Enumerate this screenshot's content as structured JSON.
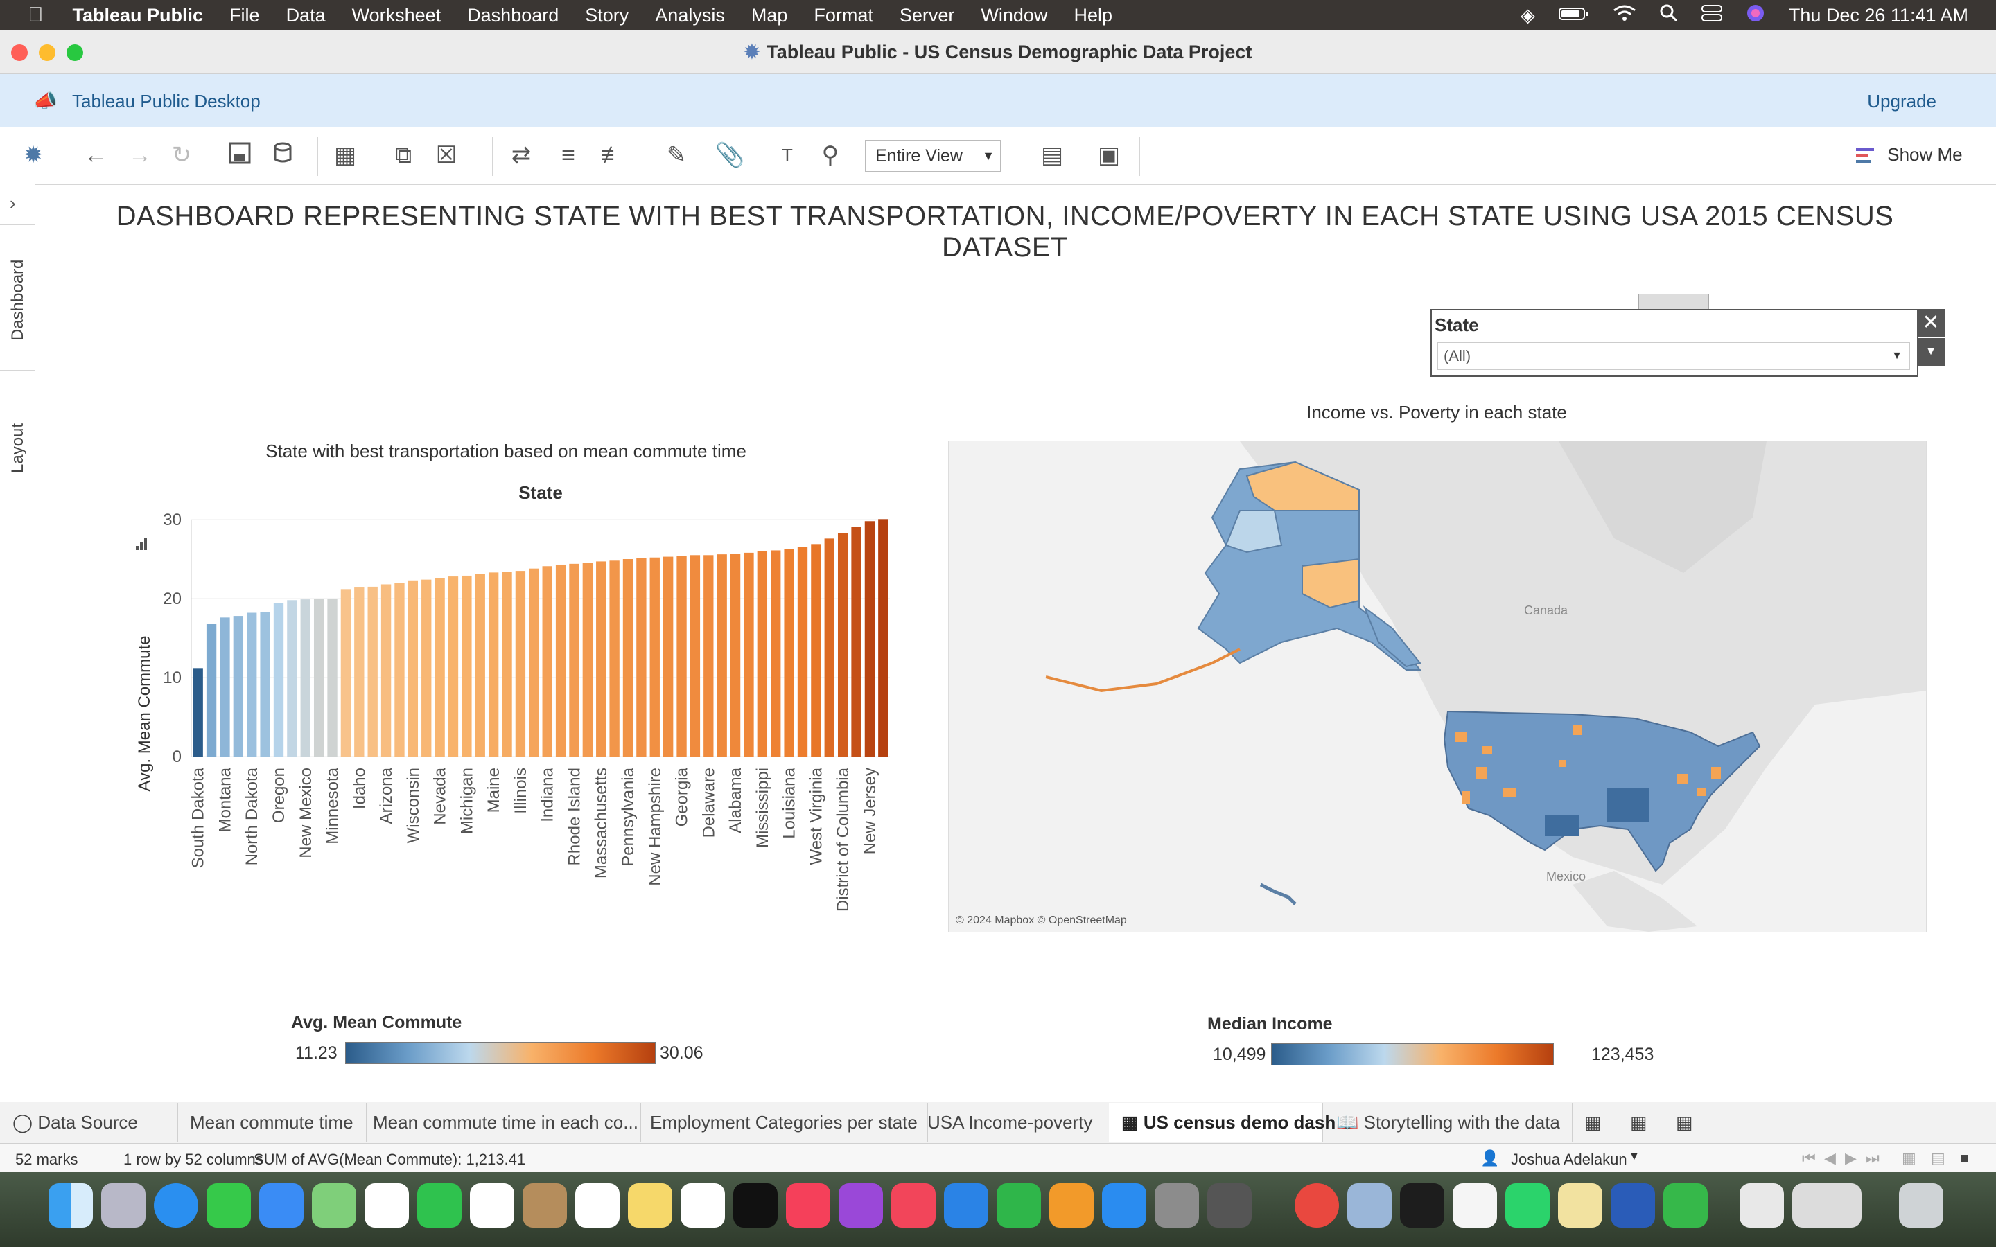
{
  "menubar": {
    "app": "Tableau Public",
    "items": [
      "File",
      "Data",
      "Worksheet",
      "Dashboard",
      "Story",
      "Analysis",
      "Map",
      "Format",
      "Server",
      "Window",
      "Help"
    ],
    "clock": "Thu Dec 26  11:41 AM"
  },
  "window": {
    "title": "Tableau Public - US Census Demographic Data Project"
  },
  "banner": {
    "label": "Tableau Public Desktop",
    "upgrade": "Upgrade"
  },
  "toolbar": {
    "fit": "Entire View",
    "show_me": "Show Me"
  },
  "rail": {
    "dashboard": "Dashboard",
    "layout": "Layout"
  },
  "dashboard": {
    "title": "DASHBOARD REPRESENTING STATE WITH BEST TRANSPORTATION, INCOME/POVERTY IN EACH STATE USING USA 2015 CENSUS DATASET"
  },
  "filter": {
    "label": "State",
    "value": "(All)"
  },
  "bar_chart": {
    "title": "State with best transportation based on mean commute time",
    "header": "State",
    "ylabel": "Avg. Mean Commute"
  },
  "map": {
    "title": "Income vs. Poverty in each state",
    "labels": {
      "canada": "Canada",
      "mexico": "Mexico"
    },
    "attribution": "© 2024 Mapbox © OpenStreetMap"
  },
  "legend_commute": {
    "title": "Avg. Mean Commute",
    "min": "11.23",
    "max": "30.06"
  },
  "legend_income": {
    "title": "Median Income",
    "min": "10,499",
    "max": "123,453"
  },
  "chart_data": {
    "type": "bar",
    "title": "State with best transportation based on mean commute time",
    "xlabel": "State",
    "ylabel": "Avg. Mean Commute",
    "ylim": [
      0,
      30
    ],
    "yticks": [
      0,
      10,
      20,
      30
    ],
    "color_range": [
      11.23,
      30.06
    ],
    "categories": [
      "South Dakota",
      "",
      "Montana",
      "",
      "North Dakota",
      "",
      "Oregon",
      "",
      "New Mexico",
      "",
      "Minnesota",
      "",
      "Idaho",
      "",
      "Arizona",
      "",
      "Wisconsin",
      "",
      "Nevada",
      "",
      "Michigan",
      "",
      "Maine",
      "",
      "Illinois",
      "",
      "Indiana",
      "",
      "Rhode Island",
      "",
      "Massachusetts",
      "",
      "Pennsylvania",
      "",
      "New Hampshire",
      "",
      "Georgia",
      "",
      "Delaware",
      "",
      "Alabama",
      "",
      "Mississippi",
      "",
      "Louisiana",
      "",
      "West Virginia",
      "",
      "District of Columbia",
      "",
      "New Jersey",
      ""
    ],
    "values": [
      11.2,
      16.8,
      17.6,
      17.8,
      18.2,
      18.3,
      19.4,
      19.8,
      19.9,
      20.0,
      20.0,
      21.2,
      21.4,
      21.5,
      21.8,
      22.0,
      22.3,
      22.4,
      22.6,
      22.8,
      22.9,
      23.1,
      23.3,
      23.4,
      23.5,
      23.8,
      24.1,
      24.3,
      24.4,
      24.5,
      24.7,
      24.8,
      25.0,
      25.1,
      25.2,
      25.3,
      25.4,
      25.5,
      25.5,
      25.6,
      25.7,
      25.8,
      26.0,
      26.1,
      26.3,
      26.5,
      26.9,
      27.6,
      28.3,
      29.1,
      29.8,
      30.06
    ]
  },
  "tabs": [
    "Data Source",
    "Mean commute time",
    "Mean commute time in each co...",
    "Employment Categories per state",
    "USA Income-poverty",
    "US census demo dash",
    "Storytelling with the data"
  ],
  "status": {
    "marks": "52 marks",
    "dims": "1 row by 52 columns",
    "sum": "SUM of AVG(Mean Commute): 1,213.41",
    "user": "Joshua Adelakun"
  },
  "colors": {
    "low": "#2b5c8a",
    "mid_low": "#a9cde6",
    "mid_high": "#f8b26a",
    "high": "#b5400f"
  }
}
